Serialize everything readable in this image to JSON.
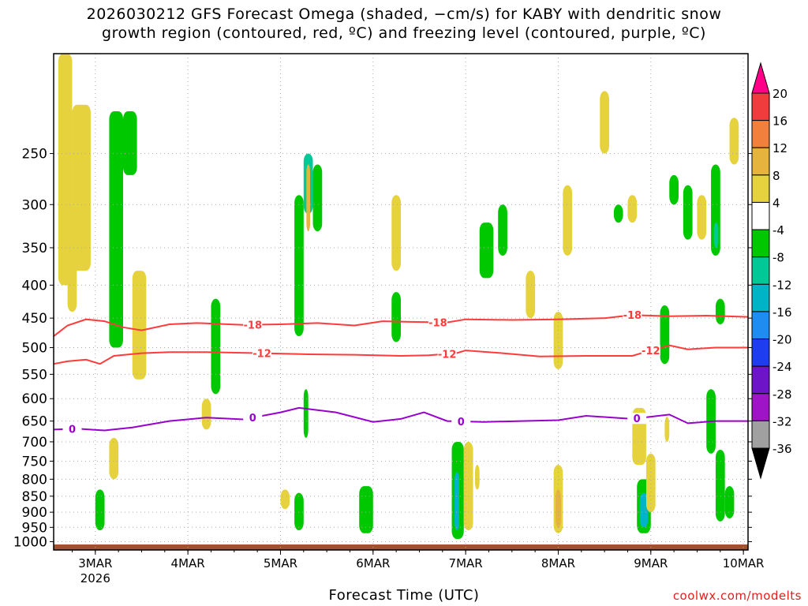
{
  "title_line1": "2026030212 GFS Forecast Omega (shaded, −cm/s) for KABY with dendritic snow",
  "title_line2": "growth region (contoured, red, ºC) and freezing level (contoured, purple, ºC)",
  "xlabel": "Forecast Time (UTC)",
  "credit": "coolwx.com/modelts",
  "colors": {
    "ground": "#a0522d",
    "red_contour": "#ff3b3b",
    "purple_contour": "#9900cc",
    "grid": "#aaaaaa"
  },
  "chart_data": {
    "type": "heatmap",
    "title": "2026030212 GFS Forecast Omega (shaded, −cm/s) for KABY with dendritic snow growth region (contoured, red, ºC) and freezing level (contoured, purple, ºC)",
    "xlabel": "Forecast Time (UTC)",
    "ylabel": "",
    "x_ticks": [
      "3MAR",
      "4MAR",
      "5MAR",
      "6MAR",
      "7MAR",
      "8MAR",
      "9MAR",
      "10MAR"
    ],
    "x_sub": "2026",
    "xlim_days": [
      2.55,
      10.05
    ],
    "y_ticks": [
      250,
      300,
      350,
      400,
      450,
      500,
      550,
      600,
      650,
      700,
      750,
      800,
      850,
      900,
      950,
      1000
    ],
    "ylim": [
      1030,
      175
    ],
    "y_scale": "log",
    "grid": true,
    "colorbar": {
      "levels": [
        20,
        16,
        12,
        8,
        4,
        -4,
        -8,
        -12,
        -16,
        -20,
        -24,
        -28,
        -32,
        -36
      ],
      "colors": [
        "#ff0088",
        "#f03c3c",
        "#f0803c",
        "#e6b43c",
        "#e6d23c",
        "#ffffff",
        "#00c800",
        "#00c896",
        "#00b4c8",
        "#1e8cf0",
        "#1e3cf0",
        "#6e14c8",
        "#a014c8",
        "#a0a0a0",
        "#000000"
      ]
    },
    "contours": [
      {
        "label": "-18",
        "color": "#ff3b3b",
        "labels_at": [
          "4.7",
          "6.7",
          "8.8"
        ],
        "points": [
          [
            2.55,
            480
          ],
          [
            2.7,
            462
          ],
          [
            2.9,
            452
          ],
          [
            3.1,
            455
          ],
          [
            3.3,
            465
          ],
          [
            3.5,
            470
          ],
          [
            3.8,
            460
          ],
          [
            4.1,
            458
          ],
          [
            4.6,
            461
          ],
          [
            5.0,
            460
          ],
          [
            5.4,
            458
          ],
          [
            5.8,
            462
          ],
          [
            6.1,
            455
          ],
          [
            6.4,
            456
          ],
          [
            6.8,
            457
          ],
          [
            7.0,
            452
          ],
          [
            7.5,
            453
          ],
          [
            8.0,
            452
          ],
          [
            8.5,
            450
          ],
          [
            8.8,
            445
          ],
          [
            9.2,
            447
          ],
          [
            9.6,
            446
          ],
          [
            10.05,
            448
          ]
        ]
      },
      {
        "label": "-12",
        "color": "#ff3b3b",
        "labels_at": [
          "4.8",
          "6.8",
          "9.0"
        ],
        "points": [
          [
            2.55,
            530
          ],
          [
            2.7,
            525
          ],
          [
            2.9,
            522
          ],
          [
            3.05,
            530
          ],
          [
            3.2,
            515
          ],
          [
            3.5,
            510
          ],
          [
            3.8,
            508
          ],
          [
            4.2,
            508
          ],
          [
            4.8,
            510
          ],
          [
            5.3,
            512
          ],
          [
            5.8,
            513
          ],
          [
            6.3,
            515
          ],
          [
            6.6,
            514
          ],
          [
            6.9,
            510
          ],
          [
            7.0,
            505
          ],
          [
            7.4,
            510
          ],
          [
            7.8,
            516
          ],
          [
            8.3,
            515
          ],
          [
            8.8,
            515
          ],
          [
            9.0,
            505
          ],
          [
            9.2,
            496
          ],
          [
            9.4,
            503
          ],
          [
            9.7,
            500
          ],
          [
            10.05,
            500
          ]
        ]
      },
      {
        "label": "0",
        "color": "#9900cc",
        "labels_at": [
          "2.75",
          "4.7",
          "6.95",
          "8.85"
        ],
        "points": [
          [
            2.55,
            670
          ],
          [
            2.8,
            668
          ],
          [
            3.1,
            672
          ],
          [
            3.4,
            665
          ],
          [
            3.8,
            650
          ],
          [
            4.2,
            642
          ],
          [
            4.6,
            646
          ],
          [
            5.0,
            630
          ],
          [
            5.2,
            620
          ],
          [
            5.6,
            630
          ],
          [
            6.0,
            652
          ],
          [
            6.3,
            645
          ],
          [
            6.55,
            630
          ],
          [
            6.8,
            650
          ],
          [
            7.2,
            652
          ],
          [
            7.6,
            650
          ],
          [
            8.0,
            648
          ],
          [
            8.3,
            638
          ],
          [
            8.8,
            645
          ],
          [
            9.2,
            635
          ],
          [
            9.4,
            655
          ],
          [
            9.7,
            650
          ],
          [
            10.05,
            650
          ]
        ]
      }
    ],
    "omega_regions": [
      {
        "x": [
          2.6,
          2.75
        ],
        "p": [
          175,
          400
        ],
        "value": 5
      },
      {
        "x": [
          2.7,
          2.8
        ],
        "p": [
          300,
          440
        ],
        "value": 5
      },
      {
        "x": [
          2.75,
          2.95
        ],
        "p": [
          210,
          380
        ],
        "value": 6
      },
      {
        "x": [
          3.15,
          3.3
        ],
        "p": [
          215,
          500
        ],
        "value": -7
      },
      {
        "x": [
          3.3,
          3.45
        ],
        "p": [
          215,
          270
        ],
        "value": -6
      },
      {
        "x": [
          3.4,
          3.55
        ],
        "p": [
          380,
          560
        ],
        "value": 5
      },
      {
        "x": [
          3.15,
          3.25
        ],
        "p": [
          690,
          800
        ],
        "value": 5
      },
      {
        "x": [
          3.0,
          3.1
        ],
        "p": [
          830,
          960
        ],
        "value": -7
      },
      {
        "x": [
          4.25,
          4.35
        ],
        "p": [
          420,
          590
        ],
        "value": -6
      },
      {
        "x": [
          4.15,
          4.25
        ],
        "p": [
          600,
          670
        ],
        "value": 5
      },
      {
        "x": [
          5.15,
          5.25
        ],
        "p": [
          290,
          480
        ],
        "value": -7
      },
      {
        "x": [
          5.25,
          5.35
        ],
        "p": [
          250,
          310
        ],
        "value": -9
      },
      {
        "x": [
          5.28,
          5.32
        ],
        "p": [
          260,
          330
        ],
        "value": 10
      },
      {
        "x": [
          5.35,
          5.45
        ],
        "p": [
          260,
          330
        ],
        "value": -8
      },
      {
        "x": [
          5.15,
          5.25
        ],
        "p": [
          840,
          960
        ],
        "value": -7
      },
      {
        "x": [
          5.0,
          5.1
        ],
        "p": [
          830,
          890
        ],
        "value": 5
      },
      {
        "x": [
          5.25,
          5.3
        ],
        "p": [
          580,
          690
        ],
        "value": -6
      },
      {
        "x": [
          5.85,
          6.0
        ],
        "p": [
          820,
          970
        ],
        "value": -7
      },
      {
        "x": [
          6.2,
          6.3
        ],
        "p": [
          290,
          380
        ],
        "value": 5
      },
      {
        "x": [
          6.2,
          6.3
        ],
        "p": [
          410,
          490
        ],
        "value": -6
      },
      {
        "x": [
          6.85,
          6.98
        ],
        "p": [
          700,
          990
        ],
        "value": -7
      },
      {
        "x": [
          6.88,
          6.93
        ],
        "p": [
          780,
          960
        ],
        "value": -16
      },
      {
        "x": [
          6.98,
          7.08
        ],
        "p": [
          700,
          960
        ],
        "value": 5
      },
      {
        "x": [
          7.1,
          7.15
        ],
        "p": [
          760,
          830
        ],
        "value": 5
      },
      {
        "x": [
          7.15,
          7.3
        ],
        "p": [
          320,
          390
        ],
        "value": -6
      },
      {
        "x": [
          7.35,
          7.45
        ],
        "p": [
          300,
          360
        ],
        "value": -6
      },
      {
        "x": [
          7.65,
          7.75
        ],
        "p": [
          380,
          450
        ],
        "value": 5
      },
      {
        "x": [
          7.95,
          8.05
        ],
        "p": [
          440,
          540
        ],
        "value": 5
      },
      {
        "x": [
          7.95,
          8.05
        ],
        "p": [
          760,
          970
        ],
        "value": 6
      },
      {
        "x": [
          7.97,
          8.03
        ],
        "p": [
          830,
          950
        ],
        "value": 11
      },
      {
        "x": [
          8.05,
          8.15
        ],
        "p": [
          280,
          360
        ],
        "value": 5
      },
      {
        "x": [
          8.45,
          8.55
        ],
        "p": [
          200,
          250
        ],
        "value": 5
      },
      {
        "x": [
          8.6,
          8.7
        ],
        "p": [
          300,
          320
        ],
        "value": -6
      },
      {
        "x": [
          8.75,
          8.85
        ],
        "p": [
          290,
          320
        ],
        "value": 5
      },
      {
        "x": [
          8.85,
          9.0
        ],
        "p": [
          800,
          970
        ],
        "value": -8
      },
      {
        "x": [
          8.88,
          8.97
        ],
        "p": [
          840,
          950
        ],
        "value": -16
      },
      {
        "x": [
          8.8,
          8.95
        ],
        "p": [
          620,
          760
        ],
        "value": 5
      },
      {
        "x": [
          8.95,
          9.05
        ],
        "p": [
          730,
          900
        ],
        "value": 5
      },
      {
        "x": [
          9.1,
          9.2
        ],
        "p": [
          430,
          530
        ],
        "value": -7
      },
      {
        "x": [
          9.15,
          9.2
        ],
        "p": [
          640,
          700
        ],
        "value": 5
      },
      {
        "x": [
          9.2,
          9.3
        ],
        "p": [
          270,
          300
        ],
        "value": -7
      },
      {
        "x": [
          9.35,
          9.45
        ],
        "p": [
          280,
          340
        ],
        "value": -7
      },
      {
        "x": [
          9.5,
          9.6
        ],
        "p": [
          290,
          340
        ],
        "value": 5
      },
      {
        "x": [
          9.65,
          9.75
        ],
        "p": [
          260,
          360
        ],
        "value": -8
      },
      {
        "x": [
          9.68,
          9.73
        ],
        "p": [
          320,
          350
        ],
        "value": -11
      },
      {
        "x": [
          9.85,
          9.95
        ],
        "p": [
          220,
          260
        ],
        "value": 5
      },
      {
        "x": [
          9.6,
          9.7
        ],
        "p": [
          580,
          730
        ],
        "value": -7
      },
      {
        "x": [
          9.7,
          9.8
        ],
        "p": [
          720,
          930
        ],
        "value": -7
      },
      {
        "x": [
          9.8,
          9.9
        ],
        "p": [
          820,
          920
        ],
        "value": -7
      },
      {
        "x": [
          9.7,
          9.8
        ],
        "p": [
          420,
          460
        ],
        "value": -7
      }
    ],
    "ground_pressure": 1010
  }
}
